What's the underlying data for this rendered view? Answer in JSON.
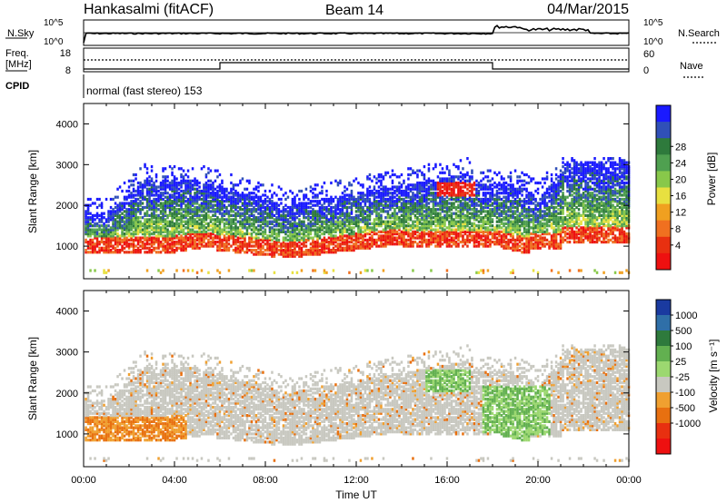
{
  "header": {
    "site": "Hankasalmi (fitACF)",
    "beam": "Beam 14",
    "date": "04/Mar/2015"
  },
  "noise_panel": {
    "left_label": "N.Sky",
    "right_label": "N.Search",
    "left_ticks": [
      "10^5",
      "10^0"
    ],
    "right_ticks": [
      "10^5",
      "10^0"
    ]
  },
  "freq_panel": {
    "left_label_line1": "Freq.",
    "left_label_line2": "[MHz]",
    "right_label": "Nave",
    "left_ticks": [
      "18",
      "8"
    ],
    "right_ticks": [
      "60",
      "0"
    ]
  },
  "cpid_panel": {
    "label": "CPID",
    "text": "normal (fast stereo) 153"
  },
  "chart_data": [
    {
      "type": "heatmap",
      "name": "power",
      "ylabel": "Slant Range [km]",
      "y_ticks": [
        "1000",
        "2000",
        "3000",
        "4000"
      ],
      "ylim": [
        200,
        4500
      ],
      "colorbar_label": "Power [dB]",
      "colorbar_ticks": [
        "4",
        "8",
        "12",
        "16",
        "20",
        "24",
        "28"
      ],
      "colorbar_colors": [
        "#1a1aff",
        "#3050b8",
        "#2e7a3c",
        "#4fa050",
        "#88c84a",
        "#e8e040",
        "#f0a020",
        "#f07020",
        "#e83010",
        "#ee1010"
      ]
    },
    {
      "type": "heatmap",
      "name": "velocity",
      "ylabel": "Slant Range [km]",
      "y_ticks": [
        "1000",
        "2000",
        "3000",
        "4000"
      ],
      "ylim": [
        200,
        4500
      ],
      "colorbar_label": "Velocity [m s⁻¹]",
      "colorbar_ticks": [
        "1000",
        "500",
        "100",
        "25",
        "-25",
        "-100",
        "-500",
        "-1000"
      ],
      "colorbar_colors": [
        "#1a3aa0",
        "#2f6fa8",
        "#2e7a3c",
        "#62b050",
        "#9cd870",
        "#c8c8c0",
        "#f0a030",
        "#e87010",
        "#e83010",
        "#ee1010"
      ]
    }
  ],
  "x_axis": {
    "ticks": [
      "00:00",
      "04:00",
      "08:00",
      "12:00",
      "16:00",
      "20:00",
      "00:00"
    ],
    "label": "Time UT"
  }
}
